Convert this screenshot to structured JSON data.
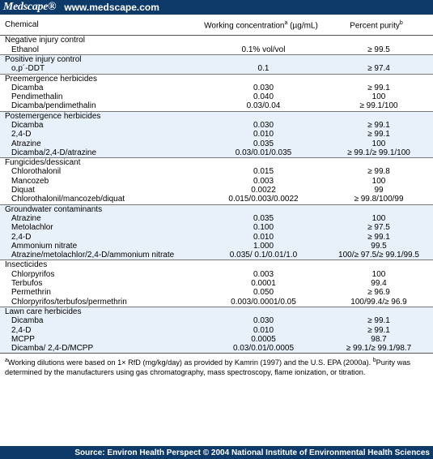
{
  "header": {
    "logo": "Medscape®",
    "site": "www.medscape.com"
  },
  "columns": {
    "chemical": "Chemical",
    "concentration": "Working concentration",
    "concentration_sup": "a",
    "concentration_unit": " (µg/mL)",
    "purity": "Percent purity",
    "purity_sup": "b"
  },
  "groups": [
    {
      "name": "Negative injury control",
      "rows": [
        {
          "chemical": "Ethanol",
          "conc": "0.1% vol/vol",
          "purity": "≥ 99.5"
        }
      ]
    },
    {
      "name": "Positive injury control",
      "rows": [
        {
          "chemical": "o,p´-DDT",
          "conc": "0.1",
          "purity": "≥ 97.4"
        }
      ]
    },
    {
      "name": "Preemergence herbicides",
      "rows": [
        {
          "chemical": "Dicamba",
          "conc": "0.030",
          "purity": "≥ 99.1"
        },
        {
          "chemical": "Pendimethalin",
          "conc": "0.040",
          "purity": "100"
        },
        {
          "chemical": "Dicamba/pendimethalin",
          "conc": "0.03/0.04",
          "purity": "≥ 99.1/100"
        }
      ]
    },
    {
      "name": "Postemergence herbicides",
      "rows": [
        {
          "chemical": "Dicamba",
          "conc": "0.030",
          "purity": "≥ 99.1"
        },
        {
          "chemical": "2,4-D",
          "conc": "0.010",
          "purity": "≥ 99.1"
        },
        {
          "chemical": "Atrazine",
          "conc": "0.035",
          "purity": "100"
        },
        {
          "chemical": "Dicamba/2,4-D/atrazine",
          "conc": "0.03/0.01/0.035",
          "purity": "≥ 99.1/≥ 99.1/100"
        }
      ]
    },
    {
      "name": "Fungicides/dessicant",
      "rows": [
        {
          "chemical": "Chlorothalonil",
          "conc": "0.015",
          "purity": "≥ 99.8"
        },
        {
          "chemical": "Mancozeb",
          "conc": "0.003",
          "purity": "100"
        },
        {
          "chemical": "Diquat",
          "conc": "0.0022",
          "purity": "99"
        },
        {
          "chemical": "Chlorothalonil/mancozeb/diquat",
          "conc": "0.015/0.003/0.0022",
          "purity": "≥ 99.8/100/99"
        }
      ]
    },
    {
      "name": "Groundwater contaminants",
      "rows": [
        {
          "chemical": "Atrazine",
          "conc": "0.035",
          "purity": "100"
        },
        {
          "chemical": "Metolachlor",
          "conc": "0.100",
          "purity": "≥ 97.5"
        },
        {
          "chemical": "2,4-D",
          "conc": "0.010",
          "purity": "≥ 99.1"
        },
        {
          "chemical": "Ammonium nitrate",
          "conc": "1.000",
          "purity": "99.5"
        },
        {
          "chemical": "Atrazine/metolachlor/2,4-D/ammonium nitrate",
          "conc": "0.035/ 0.1/0.01/1.0",
          "purity": "100/≥ 97.5/≥ 99.1/99.5"
        }
      ]
    },
    {
      "name": "Insecticides",
      "rows": [
        {
          "chemical": "Chlorpyrifos",
          "conc": "0.003",
          "purity": "100"
        },
        {
          "chemical": "Terbufos",
          "conc": "0.0001",
          "purity": "99.4"
        },
        {
          "chemical": "Permethrin",
          "conc": "0.050",
          "purity": "≥ 96.9"
        },
        {
          "chemical": "Chlorpyrifos/terbufos/permethrin",
          "conc": "0.003/0.0001/0.05",
          "purity": "100/99.4/≥ 96.9"
        }
      ]
    },
    {
      "name": "Lawn care herbicides",
      "rows": [
        {
          "chemical": "Dicamba",
          "conc": "0.030",
          "purity": "≥ 99.1"
        },
        {
          "chemical": "2,4-D",
          "conc": "0.010",
          "purity": "≥ 99.1"
        },
        {
          "chemical": "MCPP",
          "conc": "0.0005",
          "purity": "98.7"
        },
        {
          "chemical": "Dicamba/ 2,4-D/MCPP",
          "conc": "0.03/0.01/0.0005",
          "purity": "≥ 99.1/≥ 99.1/98.7"
        }
      ]
    }
  ],
  "footnote": {
    "a_mark": "a",
    "a_text": "Working dilutions were based on 1× RfD (mg/kg/day) as provided by Kamrin (1997) and the U.S. EPA (2000a). ",
    "b_mark": "b",
    "b_text": "Purity was determined by the manufacturers using gas chromatography, mass spectroscopy, flame ionization, or titration."
  },
  "footer": {
    "source": "Source: Environ Health Perspect © 2004 National Institute of Environmental Health Sciences"
  }
}
